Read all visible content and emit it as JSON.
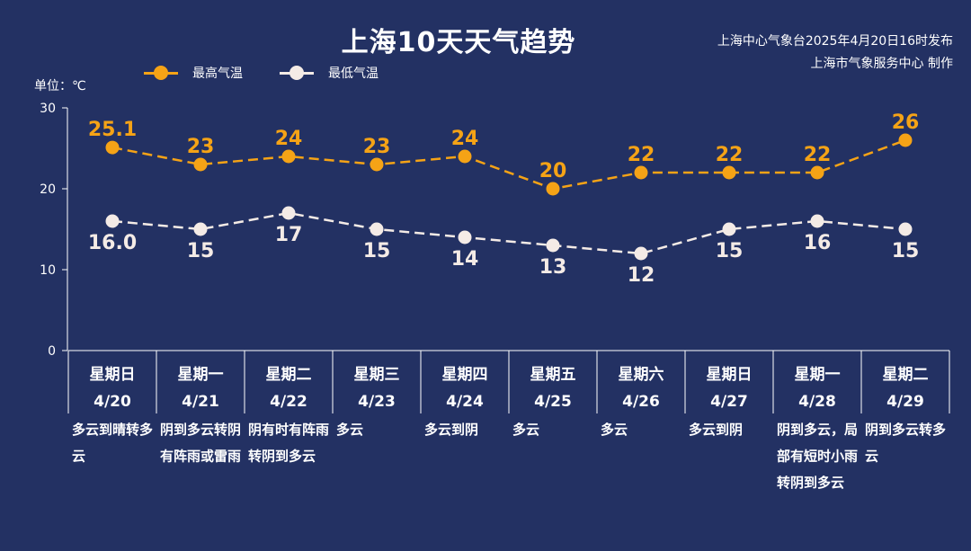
{
  "title": "上海10天天气趋势",
  "source_lines": [
    "上海中心气象台2025年4月20日16时发布",
    "上海市气象服务中心 制作"
  ],
  "unit_label": "单位：℃",
  "colors": {
    "background": "#233163",
    "high": "#F5A316",
    "low": "#F4EBE6",
    "axis": "#FFFFFF"
  },
  "legend": [
    {
      "label": "最高气温",
      "color": "#F5A316"
    },
    {
      "label": "最低气温",
      "color": "#F4EBE6"
    }
  ],
  "chart_data": {
    "type": "line",
    "yaxis": {
      "min": 0,
      "max": 30,
      "ticks": [
        0,
        10,
        20,
        30
      ],
      "unit": "℃"
    },
    "grid": false,
    "legend_position": "top-left",
    "days": [
      {
        "weekday": "星期日",
        "date": "4/20",
        "weather": "多云到晴转多云"
      },
      {
        "weekday": "星期一",
        "date": "4/21",
        "weather": "阴到多云转阴有阵雨或雷雨"
      },
      {
        "weekday": "星期二",
        "date": "4/22",
        "weather": "阴有时有阵雨转阴到多云"
      },
      {
        "weekday": "星期三",
        "date": "4/23",
        "weather": "多云"
      },
      {
        "weekday": "星期四",
        "date": "4/24",
        "weather": "多云到阴"
      },
      {
        "weekday": "星期五",
        "date": "4/25",
        "weather": "多云"
      },
      {
        "weekday": "星期六",
        "date": "4/26",
        "weather": "多云"
      },
      {
        "weekday": "星期日",
        "date": "4/27",
        "weather": "多云到阴"
      },
      {
        "weekday": "星期一",
        "date": "4/28",
        "weather": "阴到多云，局部有短时小雨转阴到多云"
      },
      {
        "weekday": "星期二",
        "date": "4/29",
        "weather": "阴到多云转多云"
      }
    ],
    "series": [
      {
        "name": "最高气温",
        "key": "high",
        "values": [
          25.1,
          23,
          24,
          23,
          24,
          20,
          22,
          22,
          22,
          26
        ],
        "labels": [
          "25.1",
          "23",
          "24",
          "23",
          "24",
          "20",
          "22",
          "22",
          "22",
          "26"
        ]
      },
      {
        "name": "最低气温",
        "key": "low",
        "values": [
          16.0,
          15,
          17,
          15,
          14,
          13,
          12,
          15,
          16,
          15
        ],
        "labels": [
          "16.0",
          "15",
          "17",
          "15",
          "14",
          "13",
          "12",
          "15",
          "16",
          "15"
        ]
      }
    ]
  }
}
